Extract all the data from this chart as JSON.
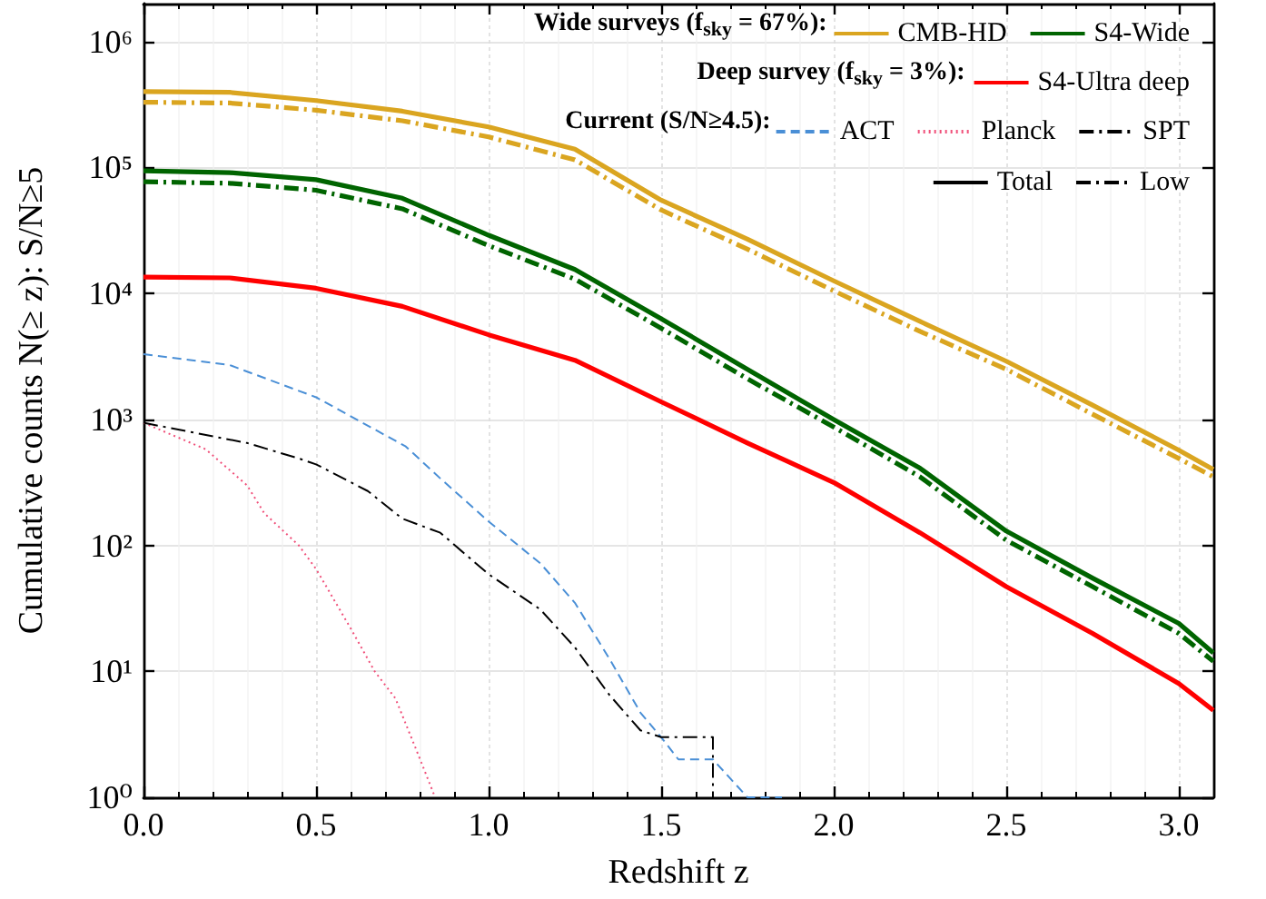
{
  "chart_data": {
    "type": "line",
    "xlabel": "Redshift z",
    "ylabel": "Cumulative counts N(≥ z): S/N≥5",
    "annotations": [
      "Wide surveys (f$_{sky}$ = 67%):",
      "Deep survey (f$_{sky}$ = 3%):",
      "Current (S/N≥4.5):"
    ],
    "x": [
      0,
      0.25,
      0.5,
      0.75,
      1.0,
      1.25,
      1.5,
      1.75,
      2.0,
      2.25,
      2.5,
      2.75,
      3.0,
      3.1
    ],
    "series": [
      {
        "name": "CMB-HD",
        "color": "#daa520",
        "line_style": "solid",
        "values": [
          400000,
          395000,
          340000,
          280000,
          210000,
          140000,
          55000,
          27000,
          12600,
          6000,
          2900,
          1300,
          570,
          400
        ]
      },
      {
        "color": "#daa520",
        "line_style": "dashdot",
        "values": [
          330000,
          325000,
          285000,
          235000,
          175000,
          115000,
          46000,
          22500,
          10500,
          5000,
          2500,
          1100,
          490,
          350
        ]
      },
      {
        "name": "S4-Wide",
        "color": "#006400",
        "line_style": "solid",
        "values": [
          94000,
          91000,
          80000,
          57000,
          29000,
          15500,
          6300,
          2500,
          1000,
          410,
          130,
          55,
          24,
          14
        ]
      },
      {
        "color": "#006400",
        "line_style": "dashdot",
        "values": [
          77000,
          75000,
          66000,
          47000,
          24000,
          13000,
          5300,
          2100,
          870,
          350,
          110,
          47,
          20,
          12
        ]
      },
      {
        "name": "S4-Ultra deep",
        "color": "#ff0000",
        "line_style": "solid",
        "values": [
          13500,
          13300,
          11000,
          7900,
          4700,
          2950,
          1380,
          650,
          316,
          126,
          47,
          20,
          8,
          4.9
        ]
      },
      {
        "name": "ACT",
        "color": "#4a8fd6",
        "line_style": "dashed",
        "x": [
          0,
          0.25,
          0.5,
          0.76,
          0.86,
          1.0,
          1.15,
          1.25,
          1.35,
          1.44,
          1.5,
          1.55,
          1.65,
          1.75,
          1.85
        ],
        "values": [
          3300,
          2700,
          1500,
          610,
          340,
          155,
          72,
          35,
          12.6,
          4.7,
          3,
          2,
          2,
          1,
          1
        ]
      },
      {
        "name": "Planck",
        "color": "#f0507a",
        "line_style": "dotted",
        "x": [
          0,
          0.18,
          0.3,
          0.35,
          0.45,
          0.5,
          0.6,
          0.67,
          0.73,
          0.79,
          0.845
        ],
        "values": [
          940,
          580,
          300,
          180,
          100,
          65,
          22,
          10,
          6.1,
          2.4,
          1
        ]
      },
      {
        "name": "SPT",
        "color": "#000000",
        "line_style": "dashdot",
        "x": [
          0,
          0.3,
          0.45,
          0.5,
          0.65,
          0.75,
          0.86,
          1.0,
          1.15,
          1.25,
          1.35,
          1.44,
          1.5,
          1.65,
          1.65
        ],
        "values": [
          940,
          650,
          490,
          440,
          270,
          163,
          126,
          59,
          31,
          15.5,
          6.5,
          3.4,
          3,
          3,
          1
        ]
      },
      {
        "name": "Total",
        "color": "#000000",
        "line_style": "solid",
        "values": [
          null,
          null,
          null,
          null,
          null,
          null,
          null,
          null,
          null,
          null,
          null,
          null,
          null,
          null
        ]
      },
      {
        "name": "Low",
        "color": "#000000",
        "line_style": "dashdot",
        "values": [
          null,
          null,
          null,
          null,
          null,
          null,
          null,
          null,
          null,
          null,
          null,
          null,
          null,
          null
        ]
      }
    ],
    "xlim": [
      0,
      3.1
    ],
    "xticks": [
      {
        "value": 0,
        "label": "0.0"
      },
      0.5,
      {
        "value": 1,
        "label": "1.0"
      },
      1.5,
      {
        "value": 2,
        "label": "2.0"
      },
      2.5,
      {
        "value": 3,
        "label": "3.0"
      }
    ],
    "ylim": [
      1,
      2000000
    ],
    "yticks": [
      {
        "value": 1,
        "label": "10⁰"
      },
      {
        "value": 10,
        "label": "10¹"
      },
      {
        "value": 100,
        "label": "10²"
      },
      {
        "value": 1000,
        "label": "10³"
      },
      {
        "value": 10000,
        "label": "10⁴"
      },
      {
        "value": 100000,
        "label": "10⁵"
      },
      {
        "value": 1000000,
        "label": "10⁶"
      }
    ],
    "log": "y",
    "grid": true,
    "legend": "top right",
    "marker": "none"
  }
}
